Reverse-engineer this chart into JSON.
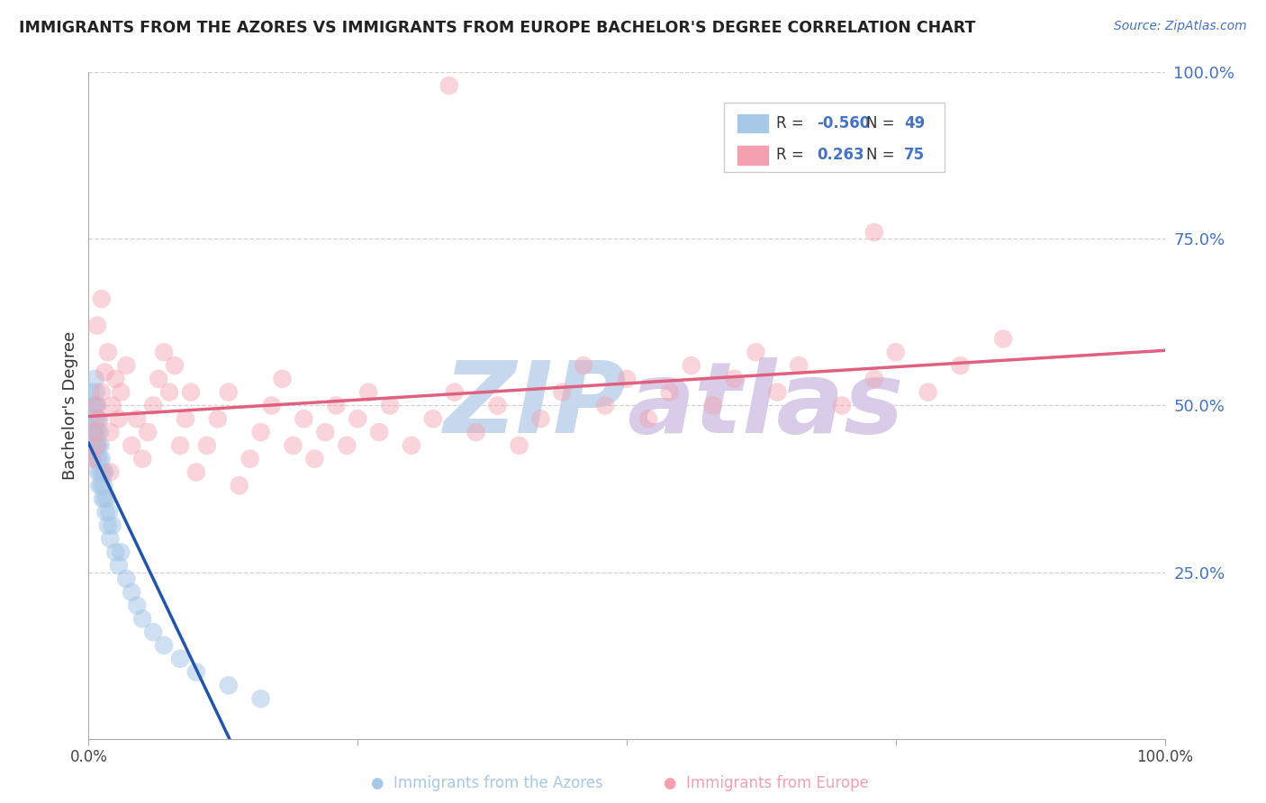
{
  "title": "IMMIGRANTS FROM THE AZORES VS IMMIGRANTS FROM EUROPE BACHELOR'S DEGREE CORRELATION CHART",
  "source": "Source: ZipAtlas.com",
  "ylabel": "Bachelor's Degree",
  "ylabel_right_ticks": [
    "100.0%",
    "75.0%",
    "50.0%",
    "25.0%"
  ],
  "ylabel_right_vals": [
    1.0,
    0.75,
    0.5,
    0.25
  ],
  "xmin": 0.0,
  "xmax": 1.0,
  "ymin": 0.0,
  "ymax": 1.0,
  "legend_blue_r": "-0.560",
  "legend_blue_n": "49",
  "legend_pink_r": "0.263",
  "legend_pink_n": "75",
  "legend_blue_label": "Immigrants from the Azores",
  "legend_pink_label": "Immigrants from Europe",
  "blue_color": "#a8c8e8",
  "pink_color": "#f4a0b0",
  "blue_line_color": "#2255aa",
  "pink_line_color": "#e06080",
  "blue_scatter_x": [
    0.002,
    0.003,
    0.004,
    0.004,
    0.005,
    0.005,
    0.006,
    0.006,
    0.006,
    0.007,
    0.007,
    0.007,
    0.008,
    0.008,
    0.008,
    0.009,
    0.009,
    0.009,
    0.01,
    0.01,
    0.01,
    0.011,
    0.011,
    0.012,
    0.012,
    0.013,
    0.013,
    0.014,
    0.015,
    0.015,
    0.016,
    0.017,
    0.018,
    0.019,
    0.02,
    0.022,
    0.025,
    0.028,
    0.03,
    0.035,
    0.04,
    0.045,
    0.05,
    0.06,
    0.07,
    0.085,
    0.1,
    0.13,
    0.16
  ],
  "blue_scatter_y": [
    0.52,
    0.48,
    0.5,
    0.44,
    0.46,
    0.42,
    0.54,
    0.5,
    0.46,
    0.52,
    0.48,
    0.44,
    0.5,
    0.46,
    0.42,
    0.48,
    0.44,
    0.4,
    0.46,
    0.42,
    0.38,
    0.44,
    0.4,
    0.42,
    0.38,
    0.4,
    0.36,
    0.38,
    0.36,
    0.4,
    0.34,
    0.36,
    0.32,
    0.34,
    0.3,
    0.32,
    0.28,
    0.26,
    0.28,
    0.24,
    0.22,
    0.2,
    0.18,
    0.16,
    0.14,
    0.12,
    0.1,
    0.08,
    0.06
  ],
  "pink_scatter_x": [
    0.003,
    0.005,
    0.007,
    0.008,
    0.01,
    0.012,
    0.015,
    0.018,
    0.02,
    0.022,
    0.025,
    0.028,
    0.03,
    0.035,
    0.04,
    0.045,
    0.05,
    0.055,
    0.06,
    0.065,
    0.07,
    0.075,
    0.08,
    0.085,
    0.09,
    0.095,
    0.1,
    0.11,
    0.12,
    0.13,
    0.14,
    0.15,
    0.16,
    0.17,
    0.18,
    0.19,
    0.2,
    0.21,
    0.22,
    0.23,
    0.24,
    0.25,
    0.26,
    0.27,
    0.28,
    0.3,
    0.32,
    0.34,
    0.36,
    0.38,
    0.4,
    0.42,
    0.44,
    0.46,
    0.48,
    0.5,
    0.52,
    0.54,
    0.56,
    0.58,
    0.6,
    0.62,
    0.64,
    0.66,
    0.7,
    0.73,
    0.75,
    0.78,
    0.81,
    0.85,
    0.008,
    0.012,
    0.02,
    0.335,
    0.73
  ],
  "pink_scatter_y": [
    0.42,
    0.46,
    0.5,
    0.44,
    0.48,
    0.52,
    0.55,
    0.58,
    0.46,
    0.5,
    0.54,
    0.48,
    0.52,
    0.56,
    0.44,
    0.48,
    0.42,
    0.46,
    0.5,
    0.54,
    0.58,
    0.52,
    0.56,
    0.44,
    0.48,
    0.52,
    0.4,
    0.44,
    0.48,
    0.52,
    0.38,
    0.42,
    0.46,
    0.5,
    0.54,
    0.44,
    0.48,
    0.42,
    0.46,
    0.5,
    0.44,
    0.48,
    0.52,
    0.46,
    0.5,
    0.44,
    0.48,
    0.52,
    0.46,
    0.5,
    0.44,
    0.48,
    0.52,
    0.56,
    0.5,
    0.54,
    0.48,
    0.52,
    0.56,
    0.5,
    0.54,
    0.58,
    0.52,
    0.56,
    0.5,
    0.54,
    0.58,
    0.52,
    0.56,
    0.6,
    0.62,
    0.66,
    0.4,
    0.98,
    0.76
  ],
  "grid_color": "#cccccc",
  "background_color": "#ffffff",
  "title_color": "#222222",
  "r_n_color": "#4472c4",
  "source_color": "#4472c4"
}
